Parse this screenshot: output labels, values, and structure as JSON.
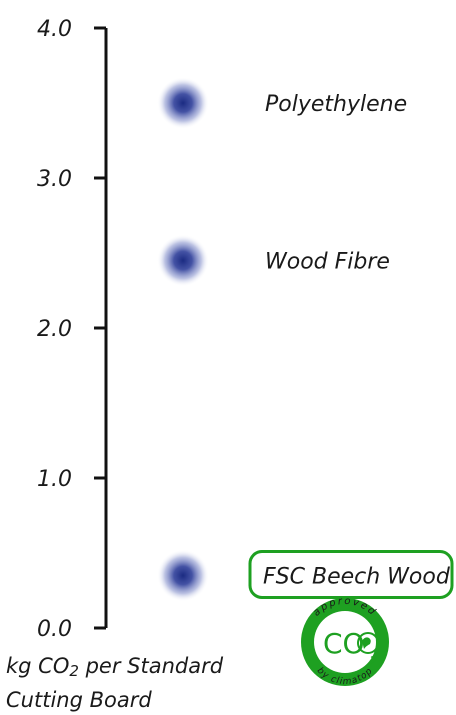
{
  "chart_data": {
    "type": "scatter",
    "ylim": [
      0,
      4
    ],
    "y_ticks": [
      "0.0",
      "1.0",
      "2.0",
      "3.0",
      "4.0"
    ],
    "grid": false,
    "axis_title_lines": [
      "kg CO2 per Standard",
      "Cutting Board"
    ],
    "points": [
      {
        "label": "Polyethylene",
        "value": 3.5,
        "highlighted": false
      },
      {
        "label": "Wood Fibre",
        "value": 2.45,
        "highlighted": false
      },
      {
        "label": "FSC Beech Wood",
        "value": 0.35,
        "highlighted": true
      }
    ],
    "point_color": "#1f2f85",
    "highlight_color": "#1ea021",
    "badge": {
      "icon": "co2-approved-badge-icon",
      "top_text": "approved",
      "center_text": "CO",
      "subscript": "2",
      "bottom_text": "by climatop"
    }
  }
}
